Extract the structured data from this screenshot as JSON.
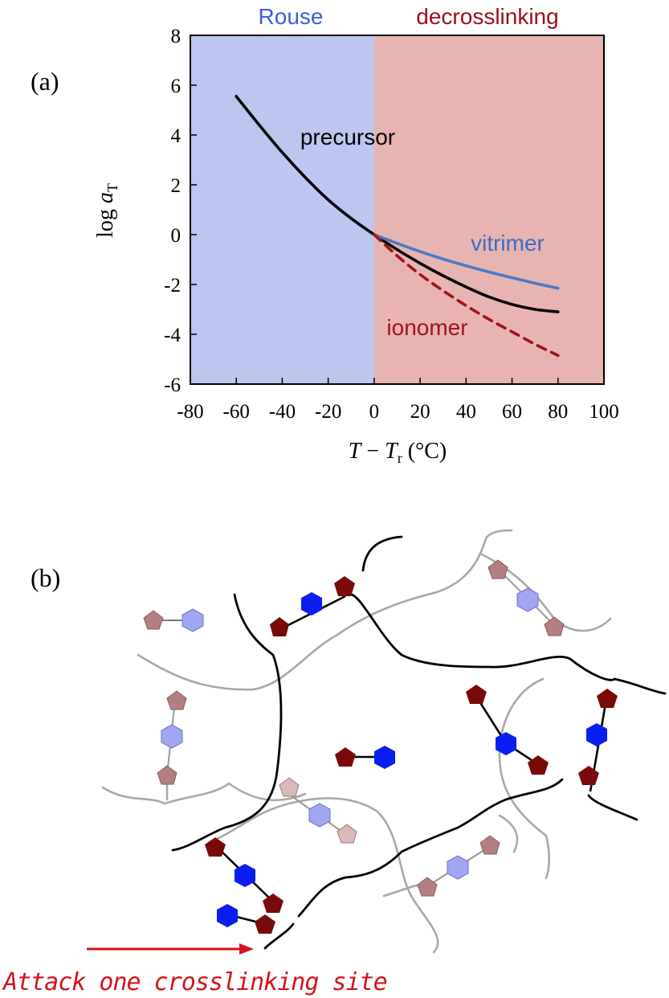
{
  "panel_a_label": "(a)",
  "panel_b_label": "(b)",
  "chart_data": {
    "type": "line",
    "xlabel": "T − Tr (°C)",
    "xlabel_parts": {
      "t": "T",
      "minus": " − ",
      "tr": "T",
      "tr_sub": "r",
      "unit": " (°C)"
    },
    "ylabel": "log aT",
    "ylabel_parts": {
      "log": "log ",
      "a": "a",
      "sub": "T"
    },
    "xlim": [
      -80,
      100
    ],
    "ylim": [
      -6,
      8
    ],
    "xticks": [
      -80,
      -60,
      -40,
      -20,
      0,
      20,
      40,
      60,
      80,
      100
    ],
    "yticks": [
      -6,
      -4,
      -2,
      0,
      2,
      4,
      6,
      8
    ],
    "grid": false,
    "regions": [
      {
        "label": "Rouse",
        "x0": -80,
        "x1": 0,
        "color": "#bcc6ef",
        "label_color": "#3a5fe0"
      },
      {
        "label": "decrosslinking",
        "x0": 0,
        "x1": 100,
        "color": "#e8b4b2",
        "label_color": "#9b1018"
      }
    ],
    "series": [
      {
        "name": "precursor",
        "color": "#000000",
        "style": "solid",
        "x": [
          -60,
          -50,
          -40,
          -30,
          -20,
          -10,
          0,
          10,
          20,
          30,
          40,
          50,
          60,
          70,
          80
        ],
        "y": [
          5.55,
          4.4,
          3.3,
          2.3,
          1.4,
          0.65,
          0.0,
          -0.6,
          -1.15,
          -1.65,
          -2.1,
          -2.5,
          -2.8,
          -3.0,
          -3.1
        ]
      },
      {
        "name": "vitrimer",
        "color": "#4a7ac8",
        "style": "solid",
        "x": [
          0,
          10,
          20,
          30,
          40,
          50,
          60,
          70,
          80
        ],
        "y": [
          0.0,
          -0.35,
          -0.68,
          -0.98,
          -1.25,
          -1.5,
          -1.73,
          -1.95,
          -2.15
        ]
      },
      {
        "name": "ionomer",
        "color": "#a01418",
        "style": "dashed",
        "x": [
          0,
          10,
          20,
          30,
          40,
          50,
          60,
          70,
          80
        ],
        "y": [
          0.0,
          -0.85,
          -1.6,
          -2.25,
          -2.85,
          -3.4,
          -3.9,
          -4.4,
          -4.85
        ]
      }
    ]
  },
  "diagram": {
    "attack_label": "Attack one crosslinking site",
    "colors": {
      "hex_strong": "#0b1ef2",
      "hex_faded": "#a0a6f2",
      "pent_strong": "#7a0a0a",
      "pent_faded": "#b37f80",
      "pent_pale": "#d9b8b8",
      "arrow": "#d4141a",
      "chain_dark": "#000000",
      "chain_gray": "#a8a8a8"
    }
  }
}
